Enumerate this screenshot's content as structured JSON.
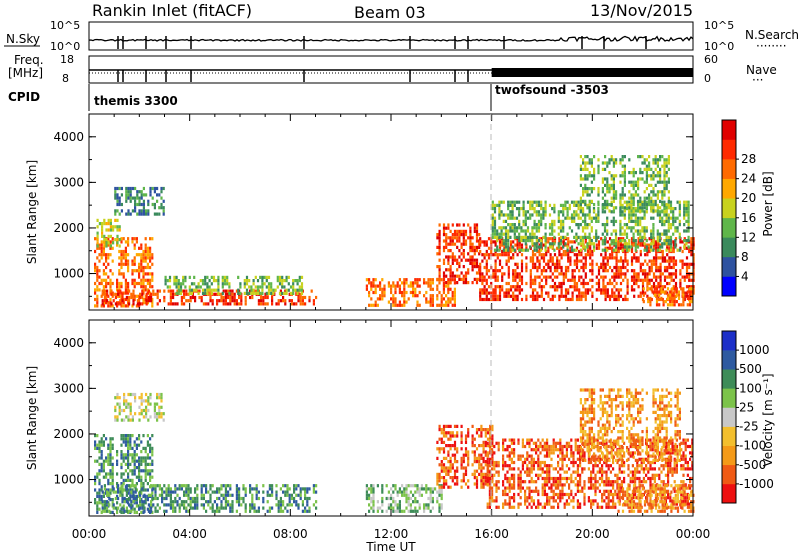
{
  "header": {
    "station": "Rankin Inlet (fitACF)",
    "beam": "Beam 03",
    "date": "13/Nov/2015"
  },
  "top_panels": {
    "nsky_label": "N.Sky",
    "nsky_left_ticks": [
      "10^5",
      "10^0"
    ],
    "nsky_right_ticks": [
      "10^5",
      "10^0"
    ],
    "nsearch_label": "N.Search",
    "freq_label_1": "Freq.",
    "freq_label_2": "[MHz]",
    "freq_ticks": [
      "18",
      "8"
    ],
    "nave_label": "Nave",
    "nave_ticks": [
      "60",
      "0"
    ],
    "cpid_label": "CPID",
    "cpid_modes": [
      "themis 3300",
      "twofsound -3503"
    ],
    "mode_change_hour": 16
  },
  "colors": {
    "power_scale": [
      "#0000ff",
      "#2e52a0",
      "#3a8a5c",
      "#5fb64a",
      "#c8d21e",
      "#ffa800",
      "#ff6a00",
      "#ff2a00",
      "#e00000"
    ],
    "velocity_scale": [
      "#ee1010",
      "#f05a14",
      "#f49a18",
      "#f3bf2e",
      "#c8c8c8",
      "#7cc34a",
      "#3e8c58",
      "#2e5aa0",
      "#1c2fc8"
    ]
  },
  "chart_data": [
    {
      "type": "heatmap",
      "name": "power-panel",
      "xlabel": "Time UT",
      "ylabel": "Slant Range [km]",
      "xlim": [
        0,
        24
      ],
      "ylim": [
        200,
        4500
      ],
      "x_ticks": [
        "00:00",
        "04:00",
        "08:00",
        "12:00",
        "16:00",
        "20:00",
        "00:00"
      ],
      "y_ticks": [
        "1000",
        "2000",
        "3000",
        "4000"
      ],
      "colorbar_label": "Power [dB]",
      "colorbar_ticks": [
        "4",
        "8",
        "12",
        "16",
        "20",
        "24",
        "28"
      ],
      "scatter_regions": [
        {
          "t0": 0.2,
          "t1": 2.5,
          "r0": 300,
          "r1": 1800,
          "level": 6
        },
        {
          "t0": 0.3,
          "t1": 1.2,
          "r0": 1600,
          "r1": 2200,
          "level": 4
        },
        {
          "t0": 0.5,
          "t1": 9.0,
          "r0": 300,
          "r1": 650,
          "level": 7
        },
        {
          "t0": 3.0,
          "t1": 8.5,
          "r0": 550,
          "r1": 950,
          "level": 3
        },
        {
          "t0": 11.0,
          "t1": 14.5,
          "r0": 300,
          "r1": 900,
          "level": 6
        },
        {
          "t0": 13.8,
          "t1": 15.5,
          "r0": 800,
          "r1": 2100,
          "level": 7
        },
        {
          "t0": 15.5,
          "t1": 24.0,
          "r0": 400,
          "r1": 1800,
          "level": 7
        },
        {
          "t0": 16.0,
          "t1": 23.8,
          "r0": 1500,
          "r1": 2600,
          "level": 3
        },
        {
          "t0": 19.5,
          "t1": 23.0,
          "r0": 2400,
          "r1": 3600,
          "level": 3
        },
        {
          "t0": 22.0,
          "t1": 24.0,
          "r0": 300,
          "r1": 700,
          "level": 6
        },
        {
          "t0": 1.0,
          "t1": 3.0,
          "r0": 2300,
          "r1": 2900,
          "level": 2
        }
      ]
    },
    {
      "type": "heatmap",
      "name": "velocity-panel",
      "xlabel": "Time UT",
      "ylabel": "Slant Range [km]",
      "xlim": [
        0,
        24
      ],
      "ylim": [
        200,
        4500
      ],
      "x_ticks": [
        "00:00",
        "04:00",
        "08:00",
        "12:00",
        "16:00",
        "20:00",
        "00:00"
      ],
      "y_ticks": [
        "1000",
        "2000",
        "3000",
        "4000"
      ],
      "colorbar_label": "Velocity [m s⁻¹]",
      "colorbar_ticks": [
        "1000",
        "500",
        "100",
        "25",
        "-25",
        "-100",
        "-500",
        "-1000"
      ],
      "scatter_regions": [
        {
          "t0": 0.2,
          "t1": 2.5,
          "r0": 300,
          "r1": 2000,
          "level": 6
        },
        {
          "t0": 0.5,
          "t1": 9.0,
          "r0": 300,
          "r1": 900,
          "level": 6
        },
        {
          "t0": 1.0,
          "t1": 3.0,
          "r0": 2300,
          "r1": 2900,
          "level": 4
        },
        {
          "t0": 11.0,
          "t1": 14.0,
          "r0": 300,
          "r1": 900,
          "level": 5
        },
        {
          "t0": 13.8,
          "t1": 16.0,
          "r0": 800,
          "r1": 2200,
          "level": 1
        },
        {
          "t0": 15.8,
          "t1": 24.0,
          "r0": 400,
          "r1": 1900,
          "level": 1
        },
        {
          "t0": 19.5,
          "t1": 23.5,
          "r0": 1400,
          "r1": 3000,
          "level": 2
        },
        {
          "t0": 21.0,
          "t1": 24.0,
          "r0": 300,
          "r1": 900,
          "level": 2
        }
      ]
    }
  ]
}
